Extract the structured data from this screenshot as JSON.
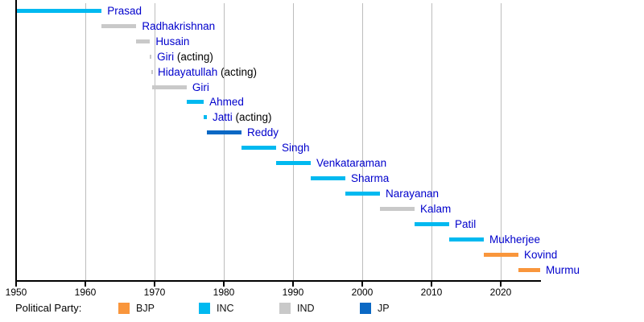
{
  "chart_data": {
    "type": "bar",
    "variant": "timeline-gantt",
    "title": "",
    "x_axis": {
      "min": 1950,
      "max": 2025.7,
      "ticks": [
        1950,
        1960,
        1970,
        1980,
        1990,
        2000,
        2010,
        2020
      ],
      "gridlines": [
        1960,
        1970,
        1980,
        1990,
        2000,
        2010,
        2020
      ],
      "grid": true
    },
    "parties": {
      "BJP": "#F9963C",
      "INC": "#00B9F0",
      "IND": "#C9C9C9",
      "JP": "#0A68C4"
    },
    "bars": [
      {
        "name": "Prasad",
        "suffix": "",
        "party": "INC",
        "start": 1950.07,
        "end": 1962.36
      },
      {
        "name": "Radhakrishnan",
        "suffix": "",
        "party": "IND",
        "start": 1962.36,
        "end": 1967.37
      },
      {
        "name": "Husain",
        "suffix": "",
        "party": "IND",
        "start": 1967.37,
        "end": 1969.34
      },
      {
        "name": "Giri",
        "suffix": " (acting)",
        "party": "IND",
        "start": 1969.34,
        "end": 1969.55
      },
      {
        "name": "Hidayatullah",
        "suffix": " (acting)",
        "party": "IND",
        "start": 1969.55,
        "end": 1969.65
      },
      {
        "name": "Giri",
        "suffix": "",
        "party": "IND",
        "start": 1969.65,
        "end": 1974.64
      },
      {
        "name": "Ahmed",
        "suffix": "",
        "party": "INC",
        "start": 1974.64,
        "end": 1977.11
      },
      {
        "name": "Jatti",
        "suffix": " (acting)",
        "party": "INC",
        "start": 1977.11,
        "end": 1977.56
      },
      {
        "name": "Reddy",
        "suffix": "",
        "party": "JP",
        "start": 1977.56,
        "end": 1982.56
      },
      {
        "name": "Singh",
        "suffix": "",
        "party": "INC",
        "start": 1982.56,
        "end": 1987.56
      },
      {
        "name": "Venkataraman",
        "suffix": "",
        "party": "INC",
        "start": 1987.56,
        "end": 1992.56
      },
      {
        "name": "Sharma",
        "suffix": "",
        "party": "INC",
        "start": 1992.56,
        "end": 1997.56
      },
      {
        "name": "Narayanan",
        "suffix": "",
        "party": "INC",
        "start": 1997.56,
        "end": 2002.56
      },
      {
        "name": "Kalam",
        "suffix": "",
        "party": "IND",
        "start": 2002.56,
        "end": 2007.56
      },
      {
        "name": "Patil",
        "suffix": "",
        "party": "INC",
        "start": 2007.56,
        "end": 2012.56
      },
      {
        "name": "Mukherjee",
        "suffix": "",
        "party": "INC",
        "start": 2012.56,
        "end": 2017.56
      },
      {
        "name": "Kovind",
        "suffix": "",
        "party": "BJP",
        "start": 2017.56,
        "end": 2022.56
      },
      {
        "name": "Murmu",
        "suffix": "",
        "party": "BJP",
        "start": 2022.56,
        "end": 2025.7
      }
    ],
    "legend": {
      "title": "Political Party:",
      "entries": [
        {
          "code": "BJP"
        },
        {
          "code": "INC"
        },
        {
          "code": "IND"
        },
        {
          "code": "JP"
        }
      ],
      "position": "bottom"
    }
  },
  "colors": {
    "background": "#FFFFFF",
    "name_text": "#0000CC",
    "acting_text": "#000000",
    "axis": "#000000",
    "gridline": "#BDBDBD"
  }
}
